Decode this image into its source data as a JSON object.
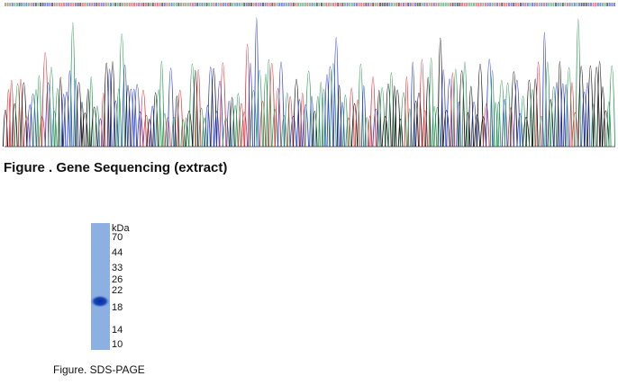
{
  "sequencing": {
    "caption": "Figure . Gene Sequencing (extract)"
  },
  "sds_page": {
    "caption": "Figure. SDS-PAGE",
    "unit": "kDa",
    "markers": [
      70,
      44,
      33,
      26,
      22,
      18,
      14,
      10
    ]
  }
}
